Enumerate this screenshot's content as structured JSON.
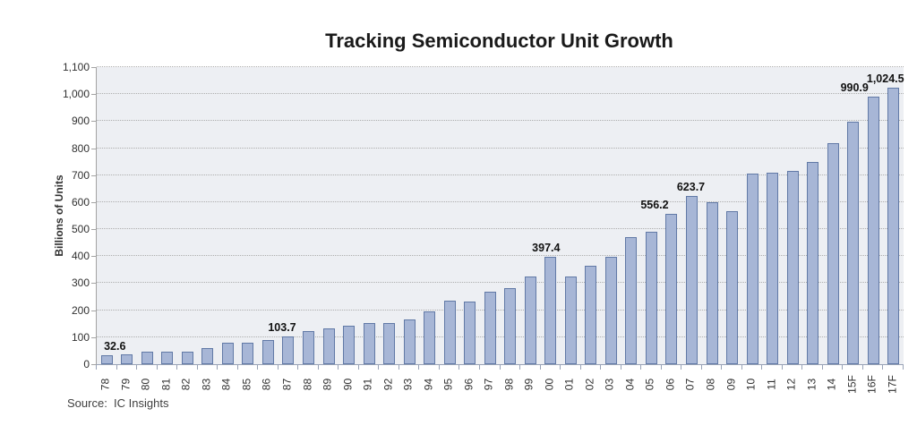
{
  "title": "Tracking Semiconductor Unit Growth",
  "source": "Source:  IC Insights",
  "chart_data": {
    "type": "bar",
    "title": "Tracking Semiconductor Unit Growth",
    "xlabel": "",
    "ylabel": "Billions of Units",
    "ylim": [
      0,
      1100
    ],
    "ytick_step": 100,
    "ytick_labels": [
      "0",
      "100",
      "200",
      "300",
      "400",
      "500",
      "600",
      "700",
      "800",
      "900",
      "1,000",
      "1,100"
    ],
    "grid": "horizontal-dotted",
    "legend": "none",
    "categories": [
      "78",
      "79",
      "80",
      "81",
      "82",
      "83",
      "84",
      "85",
      "86",
      "87",
      "88",
      "89",
      "90",
      "91",
      "92",
      "93",
      "94",
      "95",
      "96",
      "97",
      "98",
      "99",
      "00",
      "01",
      "02",
      "03",
      "04",
      "05",
      "06",
      "07",
      "08",
      "09",
      "10",
      "11",
      "12",
      "13",
      "14",
      "15F",
      "16F",
      "17F"
    ],
    "values": [
      32.6,
      38,
      48,
      48,
      47,
      58,
      80,
      78,
      88,
      103.7,
      121,
      131,
      143,
      152,
      152,
      166,
      196,
      235,
      233,
      270,
      281,
      326,
      397.4,
      325,
      366,
      396,
      472,
      490,
      556.2,
      623.7,
      600,
      568,
      705,
      710,
      715,
      750,
      818,
      898,
      990.9,
      1024.5
    ],
    "data_labels": [
      {
        "category": "78",
        "text": "32.6",
        "dx": 10
      },
      {
        "category": "87",
        "text": "103.7",
        "dx": -6
      },
      {
        "category": "00",
        "text": "397.4",
        "dx": -4
      },
      {
        "category": "06",
        "text": "556.2",
        "dx": -18
      },
      {
        "category": "07",
        "text": "623.7",
        "dx": 0
      },
      {
        "category": "16F",
        "text": "990.9",
        "dx": -20
      },
      {
        "category": "17F",
        "text": "1,024.5",
        "dx": -8
      }
    ],
    "colors": {
      "bar_fill": "#a7b6d6",
      "bar_border": "#6179a6",
      "plot_bg": "#edeff3",
      "grid": "#adadad",
      "axis": "#98a2b6",
      "text": "#303030",
      "title": "#1a1a1a"
    }
  }
}
